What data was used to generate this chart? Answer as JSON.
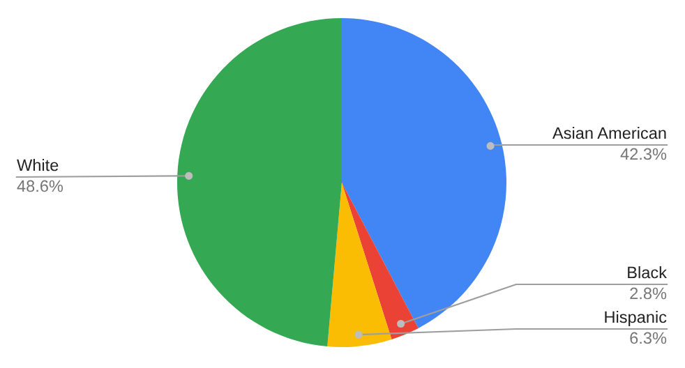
{
  "chart_data": {
    "type": "pie",
    "categories": [
      "Asian American",
      "Black",
      "Hispanic",
      "White"
    ],
    "values": [
      42.3,
      2.8,
      6.3,
      48.6
    ],
    "value_labels": [
      "42.3%",
      "2.8%",
      "6.3%",
      "48.6%"
    ],
    "colors": [
      "#4285f4",
      "#ea4335",
      "#fbbc04",
      "#34a853"
    ],
    "legend": false
  }
}
